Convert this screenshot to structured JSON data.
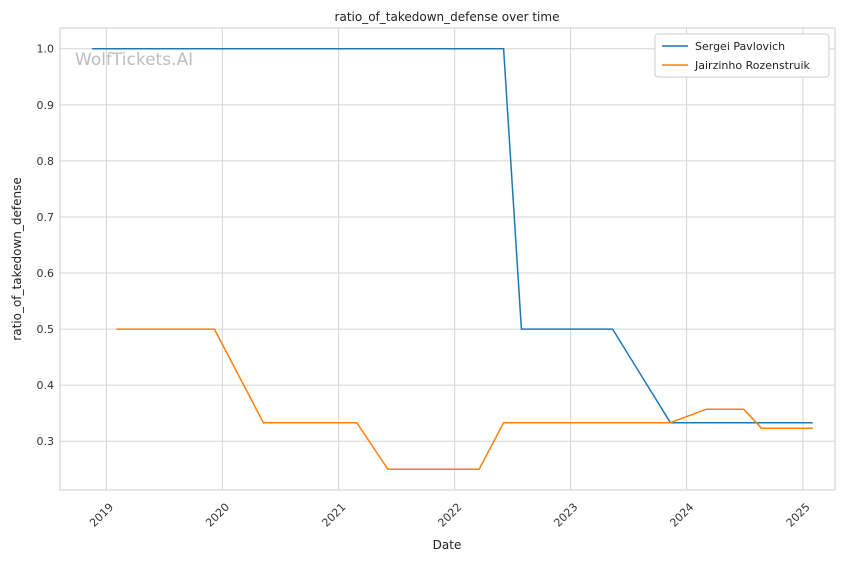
{
  "chart_data": {
    "type": "line",
    "title": "ratio_of_takedown_defense over time",
    "xlabel": "Date",
    "ylabel": "ratio_of_takedown_defense",
    "watermark": "WolfTickets.AI",
    "x_ticks": [
      "2019",
      "2020",
      "2021",
      "2022",
      "2023",
      "2024",
      "2025"
    ],
    "y_ticks": [
      "0.3",
      "0.4",
      "0.5",
      "0.6",
      "0.7",
      "0.8",
      "0.9",
      "1.0"
    ],
    "xlim": [
      "2018-08-08",
      "2025-04-12"
    ],
    "ylim": [
      0.213,
      1.037
    ],
    "grid": true,
    "legend_position": "top-right",
    "series": [
      {
        "name": "Sergei Pavlovich",
        "color": "#1f77b4",
        "points": [
          {
            "x": "2018-11-17",
            "y": 1.0
          },
          {
            "x": "2022-06-04",
            "y": 1.0
          },
          {
            "x": "2022-07-30",
            "y": 0.5
          },
          {
            "x": "2023-05-13",
            "y": 0.5
          },
          {
            "x": "2023-11-11",
            "y": 0.333
          },
          {
            "x": "2025-02-01",
            "y": 0.333
          }
        ]
      },
      {
        "name": "Jairzinho Rozenstruik",
        "color": "#ff7f0e",
        "points": [
          {
            "x": "2019-02-02",
            "y": 0.5
          },
          {
            "x": "2019-12-07",
            "y": 0.5
          },
          {
            "x": "2020-05-09",
            "y": 0.333
          },
          {
            "x": "2021-02-27",
            "y": 0.333
          },
          {
            "x": "2021-06-05",
            "y": 0.25
          },
          {
            "x": "2022-03-19",
            "y": 0.25
          },
          {
            "x": "2022-06-04",
            "y": 0.333
          },
          {
            "x": "2023-11-11",
            "y": 0.333
          },
          {
            "x": "2024-03-02",
            "y": 0.357
          },
          {
            "x": "2024-06-29",
            "y": 0.357
          },
          {
            "x": "2024-08-24",
            "y": 0.323
          },
          {
            "x": "2025-02-01",
            "y": 0.323
          }
        ]
      }
    ]
  }
}
